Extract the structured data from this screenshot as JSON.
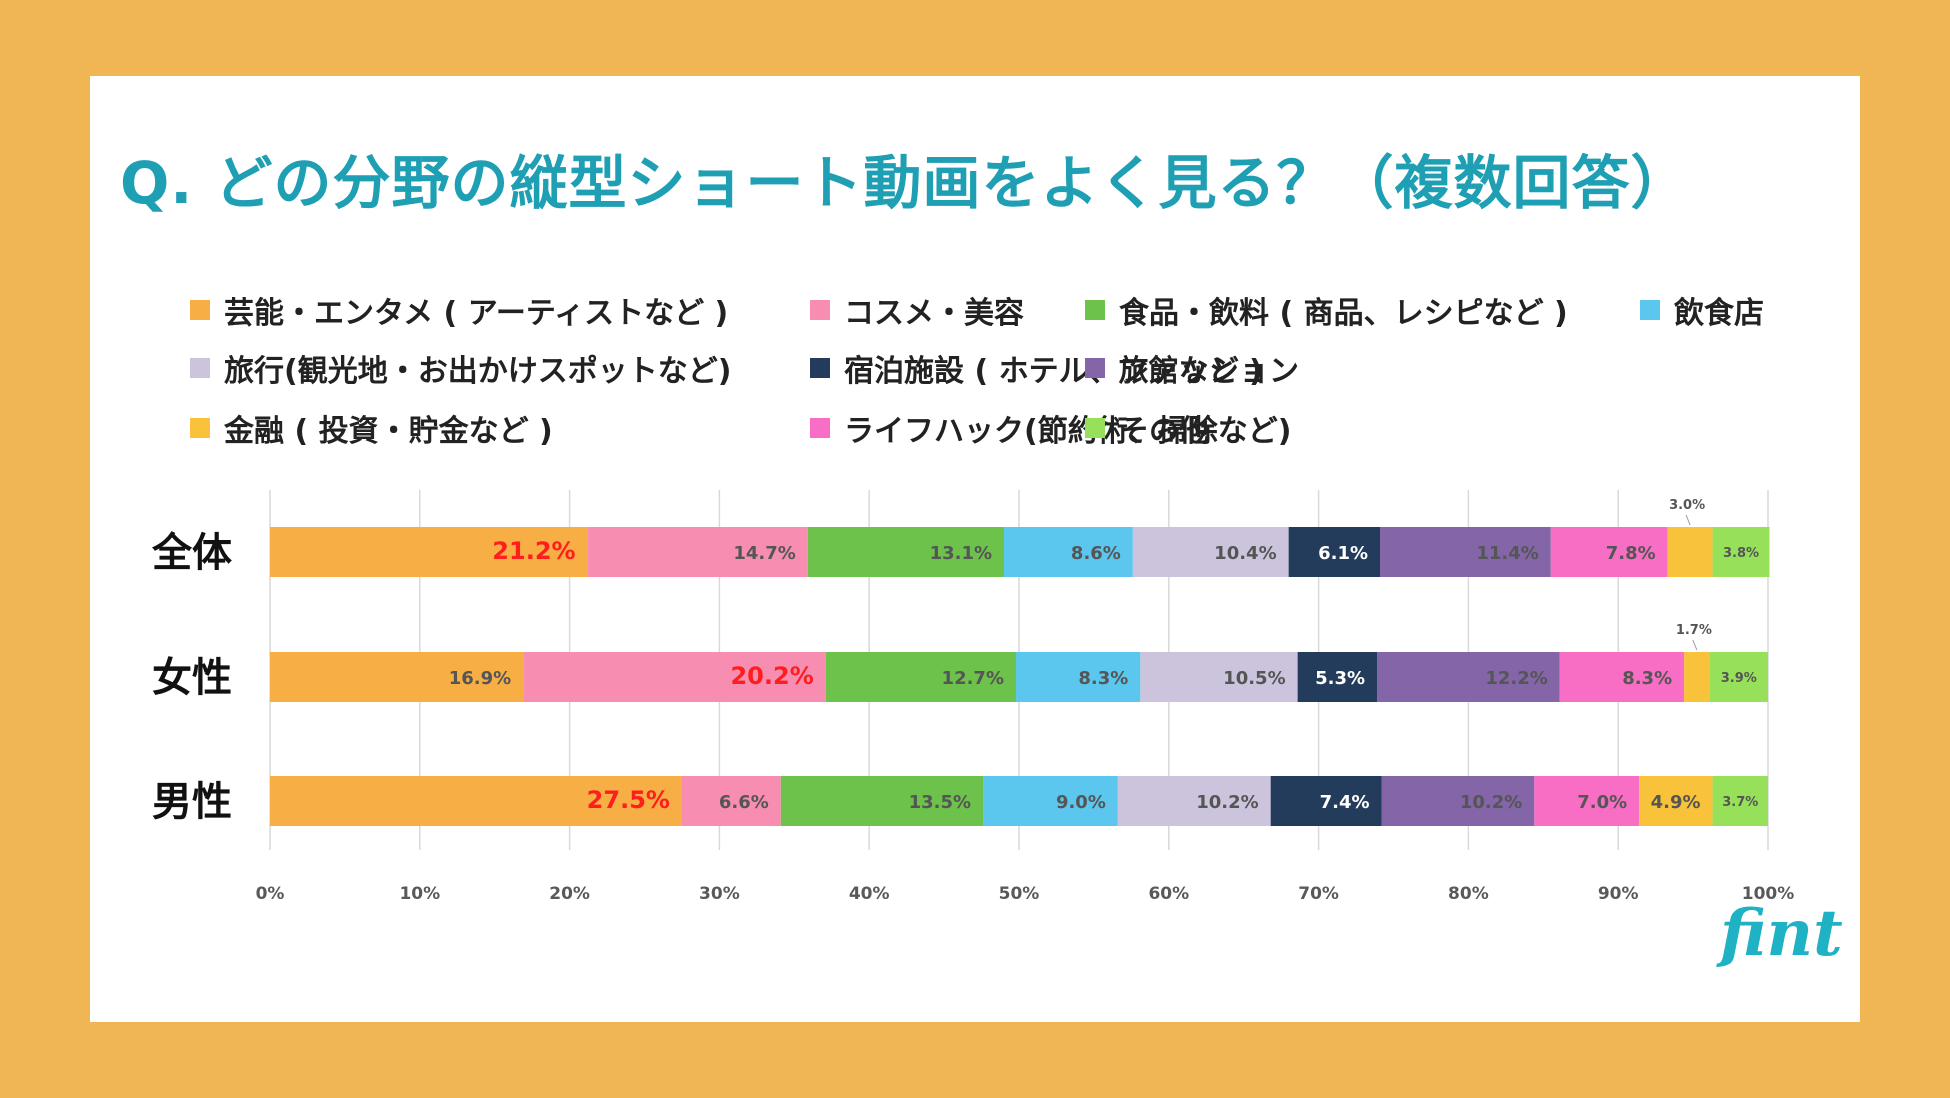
{
  "title": "Q. どの分野の縦型ショート動画をよく見る？（複数回答）",
  "logo": "fint",
  "chart_data": {
    "type": "bar",
    "orientation": "horizontal-stacked-100",
    "categories": [
      "全体",
      "女性",
      "男性"
    ],
    "xlim": [
      0,
      100
    ],
    "xticks": [
      "0%",
      "10%",
      "20%",
      "30%",
      "40%",
      "50%",
      "60%",
      "70%",
      "80%",
      "90%",
      "100%"
    ],
    "grid": true,
    "series": [
      {
        "name": "芸能・エンタメ ( アーティストなど )",
        "color": "#f6ae45",
        "values": [
          21.2,
          16.9,
          27.5
        ],
        "labels": [
          "21.2%",
          "16.9%",
          "27.5%"
        ]
      },
      {
        "name": "コスメ・美容",
        "color": "#f78eb2",
        "values": [
          14.7,
          20.2,
          6.6
        ],
        "labels": [
          "14.7%",
          "20.2%",
          "6.6%"
        ]
      },
      {
        "name": "食品・飲料 ( 商品、レシピなど )",
        "color": "#6cc24a",
        "values": [
          13.1,
          12.7,
          13.5
        ],
        "labels": [
          "13.1%",
          "12.7%",
          "13.5%"
        ]
      },
      {
        "name": "飲食店",
        "color": "#5bc6ee",
        "values": [
          8.6,
          8.3,
          9.0
        ],
        "labels": [
          "8.6%",
          "8.3%",
          "9.0%"
        ]
      },
      {
        "name": "旅行(観光地・お出かけスポットなど)",
        "color": "#ccc4dc",
        "values": [
          10.4,
          10.5,
          10.2
        ],
        "labels": [
          "10.4%",
          "10.5%",
          "10.2%"
        ]
      },
      {
        "name": "宿泊施設 ( ホテル、旅館など )",
        "color": "#243c5c",
        "values": [
          6.1,
          5.3,
          7.4
        ],
        "labels": [
          "6.1%",
          "5.3%",
          "7.4%"
        ]
      },
      {
        "name": "ファッション",
        "color": "#8365a8",
        "values": [
          11.4,
          12.2,
          10.2
        ],
        "labels": [
          "11.4%",
          "12.2%",
          "10.2%"
        ]
      },
      {
        "name": "ライフハック(節約術、掃除など)",
        "color": "#f76ec4",
        "values": [
          7.8,
          8.3,
          7.0
        ],
        "labels": [
          "7.8%",
          "8.3%",
          "7.0%"
        ]
      },
      {
        "name": "金融 ( 投資・貯金など )",
        "color": "#f8c33a",
        "values": [
          3.0,
          1.7,
          4.9
        ],
        "labels": [
          "3.0%",
          "1.7%",
          "4.9%"
        ]
      },
      {
        "name": "その他",
        "color": "#96e05a",
        "values": [
          3.8,
          3.9,
          3.7
        ],
        "labels": [
          "3.8%",
          "3.9%",
          "3.7%"
        ]
      }
    ],
    "highlight": {
      "color": "#ff1e1e",
      "labels": [
        "21.2%",
        "20.2%",
        "27.5%"
      ]
    }
  }
}
